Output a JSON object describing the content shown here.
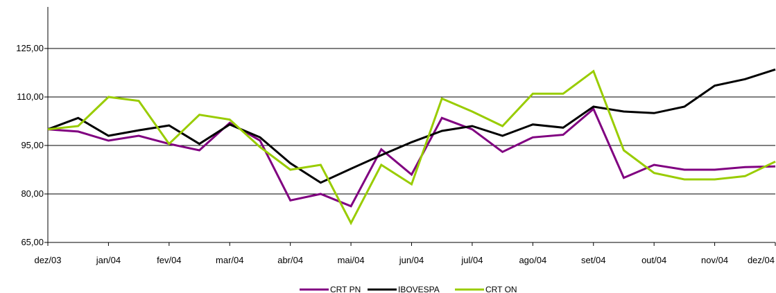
{
  "chart_data": {
    "type": "line",
    "title": "",
    "xlabel": "",
    "ylabel": "",
    "ylim": [
      65,
      140
    ],
    "y_ticks": [
      65,
      80,
      95,
      110,
      125
    ],
    "y_tick_labels": [
      "65,00",
      "80,00",
      "95,00",
      "110,00",
      "125,00"
    ],
    "x_tick_labels": [
      "dez/03",
      "jan/04",
      "fev/04",
      "mar/04",
      "abr/04",
      "mai/04",
      "jun/04",
      "jul/04",
      "ago/04",
      "set/04",
      "out/04",
      "nov/04",
      "dez/04"
    ],
    "grid": "horizontal",
    "legend_position": "bottom",
    "x": [
      0,
      0.5,
      1,
      1.5,
      2,
      2.5,
      3,
      3.5,
      4,
      4.5,
      5,
      5.5,
      6,
      6.5,
      7,
      7.5,
      8,
      8.5,
      9,
      9.5,
      10,
      10.5,
      11,
      11.5,
      12
    ],
    "series": [
      {
        "name": "CRT PN",
        "color": "#800080",
        "values": [
          100.0,
          99.3,
          96.5,
          98.0,
          95.5,
          93.5,
          102.0,
          96.5,
          78.0,
          80.0,
          76.2,
          93.8,
          86.0,
          103.5,
          100.0,
          93.0,
          97.5,
          98.3,
          106.3,
          85.0,
          89.0,
          87.5,
          87.5,
          88.3,
          88.5
        ]
      },
      {
        "name": "IBOVESPA",
        "color": "#000000",
        "values": [
          100.0,
          103.5,
          98.0,
          99.7,
          101.2,
          95.5,
          101.5,
          97.5,
          89.5,
          83.5,
          87.8,
          92.0,
          96.0,
          99.5,
          101.0,
          98.0,
          101.5,
          100.5,
          107.0,
          105.5,
          105.0,
          107.0,
          113.5,
          115.5,
          118.5
        ]
      },
      {
        "name": "CRT ON",
        "color": "#99CC00",
        "values": [
          100.0,
          101.0,
          110.0,
          108.8,
          95.5,
          104.5,
          103.0,
          94.5,
          87.5,
          89.0,
          71.0,
          89.0,
          83.0,
          109.5,
          105.5,
          101.0,
          111.0,
          111.0,
          118.0,
          93.5,
          86.5,
          84.5,
          84.5,
          85.5,
          90.0
        ]
      }
    ]
  }
}
